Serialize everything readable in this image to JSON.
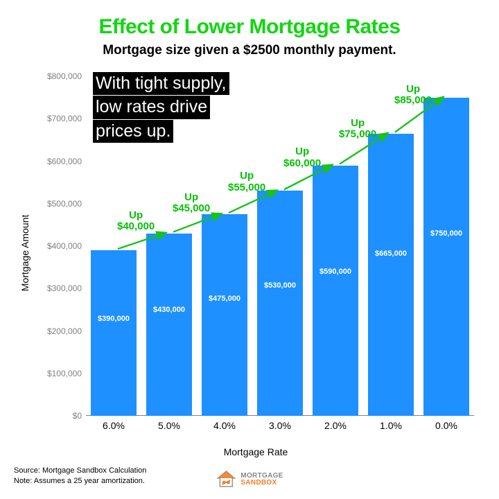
{
  "title": {
    "text": "Effect of Lower Mortgage Rates",
    "color": "#11d611",
    "fontsize": 30,
    "padding_top": 22
  },
  "subtitle": {
    "text": "Mortgage size given a $2500 monthly payment.",
    "fontsize": 19
  },
  "chart": {
    "type": "bar",
    "bar_color": "#1e90ff",
    "grid_color": "#cccccc",
    "background_color": "#ffffff",
    "y_axis": {
      "label": "Mortgage Amount",
      "min": 0,
      "max": 800000,
      "tick_step": 100000,
      "ticks": [
        "$0",
        "$100,000",
        "$200,000",
        "$300,000",
        "$400,000",
        "$500,000",
        "$600,000",
        "$700,000",
        "$800,000"
      ]
    },
    "x_axis": {
      "label": "Mortgage Rate",
      "categories": [
        "6.0%",
        "5.0%",
        "4.0%",
        "3.0%",
        "2.0%",
        "1.0%",
        "0.0%"
      ]
    },
    "values": [
      390000,
      430000,
      475000,
      530000,
      590000,
      665000,
      750000
    ],
    "value_labels": [
      "$390,000",
      "$430,000",
      "$475,000",
      "$530,000",
      "$590,000",
      "$665,000",
      "$750,000"
    ],
    "value_label_color": "#ffffff",
    "value_label_fontsize": 11
  },
  "ups": {
    "color": "#06c006",
    "items": [
      {
        "word": "Up",
        "amount": "$40,000"
      },
      {
        "word": "Up",
        "amount": "$45,000"
      },
      {
        "word": "Up",
        "amount": "$55,000"
      },
      {
        "word": "Up",
        "amount": "$60,000"
      },
      {
        "word": "Up",
        "amount": "$75,000"
      },
      {
        "word": "Up",
        "amount": "$85,000"
      }
    ],
    "fontsize": 15,
    "arrow_color": "#18c218"
  },
  "annotation": {
    "lines": [
      "With tight supply,",
      "low rates drive",
      "prices up."
    ],
    "fontsize": 25,
    "bg": "#000000",
    "color": "#ffffff"
  },
  "footer": {
    "source": "Source: Mortgage Sandbox Calculation",
    "note": "Note: Assumes a 25 year amortization."
  },
  "logo": {
    "top_text": "MORTGAGE",
    "bottom_text": "SANDBOX",
    "house_color": "#939393",
    "accent_color": "#f07d2a"
  }
}
